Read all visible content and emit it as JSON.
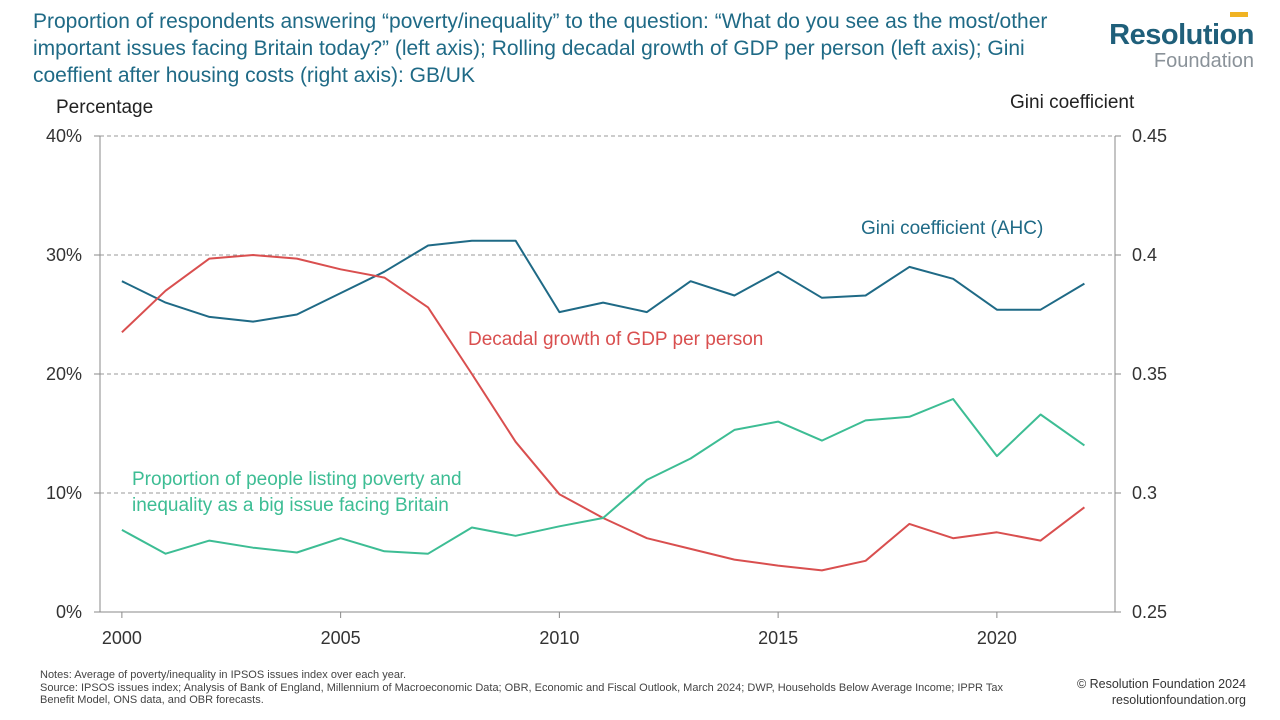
{
  "title": "Proportion of respondents answering “poverty/inequality” to the question: “What do you see as the most/other important issues facing Britain today?” (left axis); Rolling decadal growth of GDP per person (left axis); Gini coeffient after housing costs (right axis): GB/UK",
  "logo": {
    "top": "Resolution",
    "bottom": "Foundation"
  },
  "notes": [
    "Notes: Average of poverty/inequality in IPSOS issues index over each year.",
    "Source: IPSOS issues index; Analysis of Bank of England, Millennium of Macroeconomic Data; OBR, Economic and Fiscal Outlook, March 2024; DWP, Households Below Average Income; IPPR Tax Benefit Model, ONS data, and OBR forecasts."
  ],
  "credit": {
    "line1": "© Resolution Foundation 2024",
    "line2": "resolutionfoundation.org"
  },
  "colors": {
    "gini": "#1f6a86",
    "gdp": "#d94f4f",
    "poverty": "#3dbd94",
    "grid": "#9a9a9a",
    "title": "#1f6a86"
  },
  "chart_data": {
    "type": "line",
    "xlabel": "",
    "ylabel": "Percentage",
    "y2label": "Gini coefficient",
    "xlim": [
      1999.5,
      2022.7
    ],
    "ylim": [
      0,
      40
    ],
    "y2lim": [
      0.25,
      0.45
    ],
    "x_ticks": [
      2000,
      2005,
      2010,
      2015,
      2020
    ],
    "y_ticks": [
      0,
      10,
      20,
      30,
      40
    ],
    "y_tick_labels": [
      "0%",
      "10%",
      "20%",
      "30%",
      "40%"
    ],
    "y2_ticks": [
      0.25,
      0.3,
      0.35,
      0.4,
      0.45
    ],
    "y2_tick_labels": [
      "0.25",
      "0.3",
      "0.35",
      "0.4",
      "0.45"
    ],
    "grid": "horizontal dashed",
    "series": [
      {
        "name": "Gini coefficient (AHC)",
        "axis": "right",
        "color": "#1f6a86",
        "x": [
          2000,
          2001,
          2002,
          2003,
          2004,
          2005,
          2006,
          2007,
          2008,
          2009,
          2010,
          2011,
          2012,
          2013,
          2014,
          2015,
          2016,
          2017,
          2018,
          2019,
          2020,
          2021,
          2022
        ],
        "values": [
          0.389,
          0.38,
          0.374,
          0.372,
          0.375,
          0.384,
          0.393,
          0.404,
          0.406,
          0.406,
          0.376,
          0.38,
          0.376,
          0.389,
          0.383,
          0.393,
          0.382,
          0.383,
          0.395,
          0.39,
          0.377,
          0.377,
          0.388
        ]
      },
      {
        "name": "Decadal growth of GDP per person",
        "axis": "left",
        "color": "#d94f4f",
        "x": [
          2000,
          2001,
          2002,
          2003,
          2004,
          2005,
          2006,
          2007,
          2008,
          2009,
          2010,
          2011,
          2012,
          2013,
          2014,
          2015,
          2016,
          2017,
          2018,
          2019,
          2020,
          2021,
          2022
        ],
        "values": [
          23.5,
          27.0,
          29.7,
          30.0,
          29.7,
          28.8,
          28.1,
          25.6,
          20.0,
          14.3,
          9.9,
          7.9,
          6.2,
          5.3,
          4.4,
          3.9,
          3.5,
          4.3,
          7.4,
          6.2,
          6.7,
          6.0,
          8.8
        ]
      },
      {
        "name": "Proportion of people listing poverty and inequality as a big issue facing Britain",
        "axis": "left",
        "color": "#3dbd94",
        "x": [
          2000,
          2001,
          2002,
          2003,
          2004,
          2005,
          2006,
          2007,
          2008,
          2009,
          2010,
          2011,
          2012,
          2013,
          2014,
          2015,
          2016,
          2017,
          2018,
          2019,
          2020,
          2021,
          2022
        ],
        "values": [
          6.9,
          4.9,
          6.0,
          5.4,
          5.0,
          6.2,
          5.1,
          4.9,
          7.1,
          6.4,
          7.2,
          7.9,
          11.1,
          12.9,
          15.3,
          16.0,
          14.4,
          16.1,
          16.4,
          17.9,
          13.1,
          16.6,
          14.0
        ]
      }
    ],
    "annotations": [
      {
        "text": "Gini coefficient (AHC)",
        "series": "Gini coefficient (AHC)"
      },
      {
        "text": "Decadal growth of GDP per person",
        "series": "Decadal growth of GDP per person"
      },
      {
        "text": "Proportion of people listing poverty and",
        "series": "Proportion of people listing poverty and inequality as a big issue facing Britain"
      },
      {
        "text": "inequality as a big issue facing Britain",
        "series": "Proportion of people listing poverty and inequality as a big issue facing Britain"
      }
    ]
  }
}
